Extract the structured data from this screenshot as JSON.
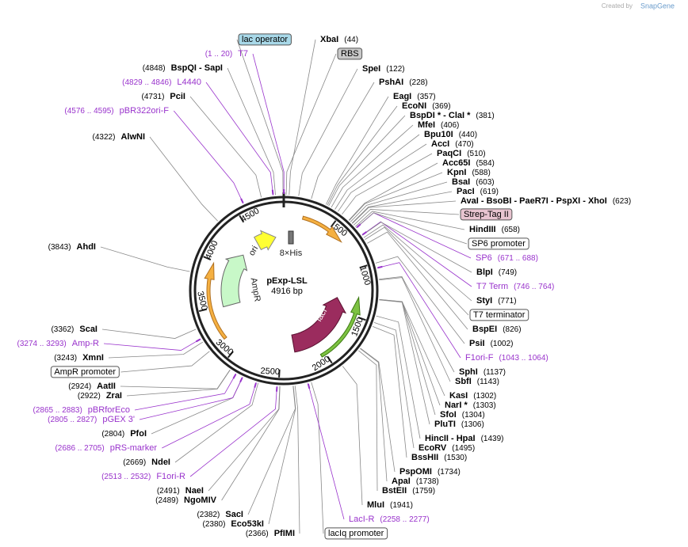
{
  "header": {
    "credit": "Created by",
    "brand": "SnapGene"
  },
  "plasmid": {
    "name": "pExp-LSL",
    "length": {
      "value": 4916,
      "label": "4916 bp"
    },
    "ticks": [
      500,
      1000,
      1500,
      2000,
      2500,
      3000,
      3500,
      4000,
      4500
    ]
  },
  "features": [
    {
      "name": "ori"
    },
    {
      "name": "AmpR"
    },
    {
      "name": "lacI"
    },
    {
      "name": "8×His"
    }
  ],
  "labels": [
    {
      "name": "lac operator",
      "style": "feature",
      "color": "#a8d8e8"
    },
    {
      "name": "XbaI",
      "position": {
        "value": 44,
        "label": "(44)"
      },
      "style": "enzyme"
    },
    {
      "name": "RBS",
      "style": "feature",
      "color": "#c8c8c8"
    },
    {
      "name": "SpeI",
      "position": {
        "value": 122,
        "label": "(122)"
      },
      "style": "enzyme"
    },
    {
      "name": "PshAI",
      "position": {
        "value": 228,
        "label": "(228)"
      },
      "style": "enzyme"
    },
    {
      "name": "EagI",
      "position": {
        "value": 357,
        "label": "(357)"
      },
      "style": "enzyme"
    },
    {
      "name": "EcoNI",
      "position": {
        "value": 369,
        "label": "(369)"
      },
      "style": "enzyme"
    },
    {
      "name": "BspDI *  - ClaI *",
      "position": {
        "value": 381,
        "label": "(381)"
      },
      "style": "enzyme"
    },
    {
      "name": "MfeI",
      "position": {
        "value": 406,
        "label": "(406)"
      },
      "style": "enzyme"
    },
    {
      "name": "Bpu10I",
      "position": {
        "value": 440,
        "label": "(440)"
      },
      "style": "enzyme"
    },
    {
      "name": "AccI",
      "position": {
        "value": 470,
        "label": "(470)"
      },
      "style": "enzyme"
    },
    {
      "name": "PaqCI",
      "position": {
        "value": 510,
        "label": "(510)"
      },
      "style": "enzyme"
    },
    {
      "name": "Acc65I",
      "position": {
        "value": 584,
        "label": "(584)"
      },
      "style": "enzyme"
    },
    {
      "name": "KpnI",
      "position": {
        "value": 588,
        "label": "(588)"
      },
      "style": "enzyme"
    },
    {
      "name": "BsaI",
      "position": {
        "value": 603,
        "label": "(603)"
      },
      "style": "enzyme"
    },
    {
      "name": "PacI",
      "position": {
        "value": 619,
        "label": "(619)"
      },
      "style": "enzyme"
    },
    {
      "name": "AvaI  - BsoBI  - PaeR7I  - PspXI  - XhoI",
      "position": {
        "value": 623,
        "label": "(623)"
      },
      "style": "enzyme"
    },
    {
      "name": "Strep-Tag II",
      "style": "feature",
      "color": "#e8c4d0"
    },
    {
      "name": "HindIII",
      "position": {
        "value": 658,
        "label": "(658)"
      },
      "style": "enzyme"
    },
    {
      "name": "SP6 promoter",
      "style": "feature",
      "color": "#ffffff"
    },
    {
      "name": "SP6",
      "position": {
        "value": 671,
        "label": "(671 .. 688)"
      },
      "style": "primer"
    },
    {
      "name": "BlpI",
      "position": {
        "value": 749,
        "label": "(749)"
      },
      "style": "enzyme"
    },
    {
      "name": "T7 Term",
      "position": {
        "value": 746,
        "label": "(746 .. 764)"
      },
      "style": "primer"
    },
    {
      "name": "StyI",
      "position": {
        "value": 771,
        "label": "(771)"
      },
      "style": "enzyme"
    },
    {
      "name": "T7 terminator",
      "style": "feature",
      "color": "#ffffff"
    },
    {
      "name": "BspEI",
      "position": {
        "value": 826,
        "label": "(826)"
      },
      "style": "enzyme"
    },
    {
      "name": "PsiI",
      "position": {
        "value": 1002,
        "label": "(1002)"
      },
      "style": "enzyme"
    },
    {
      "name": "F1ori-F",
      "position": {
        "value": 1043,
        "label": "(1043 .. 1064)"
      },
      "style": "primer"
    },
    {
      "name": "SphI",
      "position": {
        "value": 1137,
        "label": "(1137)"
      },
      "style": "enzyme"
    },
    {
      "name": "SbfI",
      "position": {
        "value": 1143,
        "label": "(1143)"
      },
      "style": "enzyme"
    },
    {
      "name": "KasI",
      "position": {
        "value": 1302,
        "label": "(1302)"
      },
      "style": "enzyme"
    },
    {
      "name": "NarI *",
      "position": {
        "value": 1303,
        "label": "(1303)"
      },
      "style": "enzyme"
    },
    {
      "name": "SfoI",
      "position": {
        "value": 1304,
        "label": "(1304)"
      },
      "style": "enzyme"
    },
    {
      "name": "PluTI",
      "position": {
        "value": 1306,
        "label": "(1306)"
      },
      "style": "enzyme"
    },
    {
      "name": "HincII  - HpaI",
      "position": {
        "value": 1439,
        "label": "(1439)"
      },
      "style": "enzyme"
    },
    {
      "name": "EcoRV",
      "position": {
        "value": 1495,
        "label": "(1495)"
      },
      "style": "enzyme"
    },
    {
      "name": "BssHII",
      "position": {
        "value": 1530,
        "label": "(1530)"
      },
      "style": "enzyme"
    },
    {
      "name": "PspOMI",
      "position": {
        "value": 1734,
        "label": "(1734)"
      },
      "style": "enzyme"
    },
    {
      "name": "ApaI",
      "position": {
        "value": 1738,
        "label": "(1738)"
      },
      "style": "enzyme"
    },
    {
      "name": "BstEII",
      "position": {
        "value": 1759,
        "label": "(1759)"
      },
      "style": "enzyme"
    },
    {
      "name": "MluI",
      "position": {
        "value": 1941,
        "label": "(1941)"
      },
      "style": "enzyme"
    },
    {
      "name": "LacI-R",
      "position": {
        "value": 2258,
        "label": "(2258 .. 2277)"
      },
      "style": "primer"
    },
    {
      "name": "lacIq promoter",
      "style": "feature",
      "color": "#ffffff"
    },
    {
      "name": "T7",
      "position": {
        "value": 1,
        "label": "(1 .. 20)"
      },
      "style": "primer"
    },
    {
      "name": "BspQI   - SapI",
      "position": {
        "value": 4848,
        "label": "(4848)"
      },
      "style": "enzyme"
    },
    {
      "name": "L4440",
      "position": {
        "value": 4829,
        "label": "(4829 .. 4846)"
      },
      "style": "primer"
    },
    {
      "name": "PciI",
      "position": {
        "value": 4731,
        "label": "(4731)"
      },
      "style": "enzyme"
    },
    {
      "name": "pBR322ori-F",
      "position": {
        "value": 4576,
        "label": "(4576 .. 4595)"
      },
      "style": "primer"
    },
    {
      "name": "AlwNI",
      "position": {
        "value": 4322,
        "label": "(4322)"
      },
      "style": "enzyme"
    },
    {
      "name": "AhdI",
      "position": {
        "value": 3843,
        "label": "(3843)"
      },
      "style": "enzyme"
    },
    {
      "name": "ScaI",
      "position": {
        "value": 3362,
        "label": "(3362)"
      },
      "style": "enzyme"
    },
    {
      "name": "Amp-R",
      "position": {
        "value": 3274,
        "label": "(3274 .. 3293)"
      },
      "style": "primer"
    },
    {
      "name": "XmnI",
      "position": {
        "value": 3243,
        "label": "(3243)"
      },
      "style": "enzyme"
    },
    {
      "name": "AmpR promoter",
      "style": "feature",
      "color": "#ffffff"
    },
    {
      "name": "AatII",
      "position": {
        "value": 2924,
        "label": "(2924)"
      },
      "style": "enzyme"
    },
    {
      "name": "ZraI",
      "position": {
        "value": 2922,
        "label": "(2922)"
      },
      "style": "enzyme"
    },
    {
      "name": "pBRforEco",
      "position": {
        "value": 2865,
        "label": "(2865 .. 2883)"
      },
      "style": "primer"
    },
    {
      "name": "pGEX 3'",
      "position": {
        "value": 2805,
        "label": "(2805 .. 2827)"
      },
      "style": "primer"
    },
    {
      "name": "PfoI",
      "position": {
        "value": 2804,
        "label": "(2804)"
      },
      "style": "enzyme"
    },
    {
      "name": "pRS-marker",
      "position": {
        "value": 2686,
        "label": "(2686 .. 2705)"
      },
      "style": "primer"
    },
    {
      "name": "NdeI",
      "position": {
        "value": 2669,
        "label": "(2669)"
      },
      "style": "enzyme"
    },
    {
      "name": "F1ori-R",
      "position": {
        "value": 2513,
        "label": "(2513 .. 2532)"
      },
      "style": "primer"
    },
    {
      "name": "NaeI",
      "position": {
        "value": 2491,
        "label": "(2491)"
      },
      "style": "enzyme"
    },
    {
      "name": "NgoMIV",
      "position": {
        "value": 2489,
        "label": "(2489)"
      },
      "style": "enzyme"
    },
    {
      "name": "SacI",
      "position": {
        "value": 2382,
        "label": "(2382)"
      },
      "style": "enzyme"
    },
    {
      "name": "Eco53kI",
      "position": {
        "value": 2380,
        "label": "(2380)"
      },
      "style": "enzyme"
    },
    {
      "name": "PfIMI",
      "position": {
        "value": 2366,
        "label": "(2366)"
      },
      "style": "enzyme"
    }
  ]
}
